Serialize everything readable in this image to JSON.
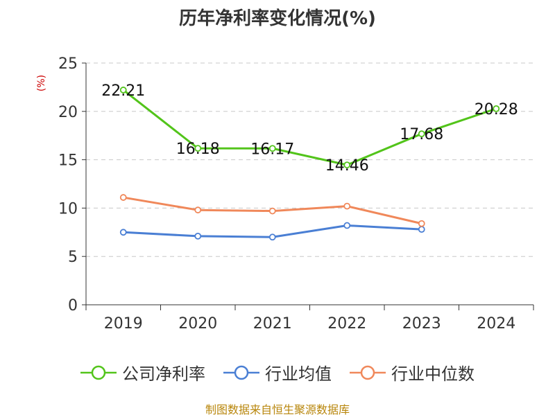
{
  "chart_data": {
    "type": "line",
    "title": "历年净利率变化情况(%)",
    "ylabel": "(%)",
    "categories": [
      "2019",
      "2020",
      "2021",
      "2022",
      "2023",
      "2024"
    ],
    "yticks": [
      "0",
      "5",
      "10",
      "15",
      "20",
      "25"
    ],
    "ylim": [
      0,
      25
    ],
    "grid": true,
    "legend_position": "bottom",
    "series": [
      {
        "name": "公司净利率",
        "color": "#52c41a",
        "values": [
          22.21,
          16.18,
          16.17,
          14.46,
          17.68,
          20.28
        ],
        "labels": [
          "22.21",
          "16.18",
          "16.17",
          "14.46",
          "17.68",
          "20.28"
        ]
      },
      {
        "name": "行业均值",
        "color": "#4a7fd4",
        "values": [
          7.5,
          7.1,
          7.0,
          8.2,
          7.8,
          null
        ]
      },
      {
        "name": "行业中位数",
        "color": "#f0885a",
        "values": [
          11.1,
          9.8,
          9.7,
          10.2,
          8.4,
          null
        ]
      }
    ]
  },
  "source": "制图数据来自恒生聚源数据库"
}
